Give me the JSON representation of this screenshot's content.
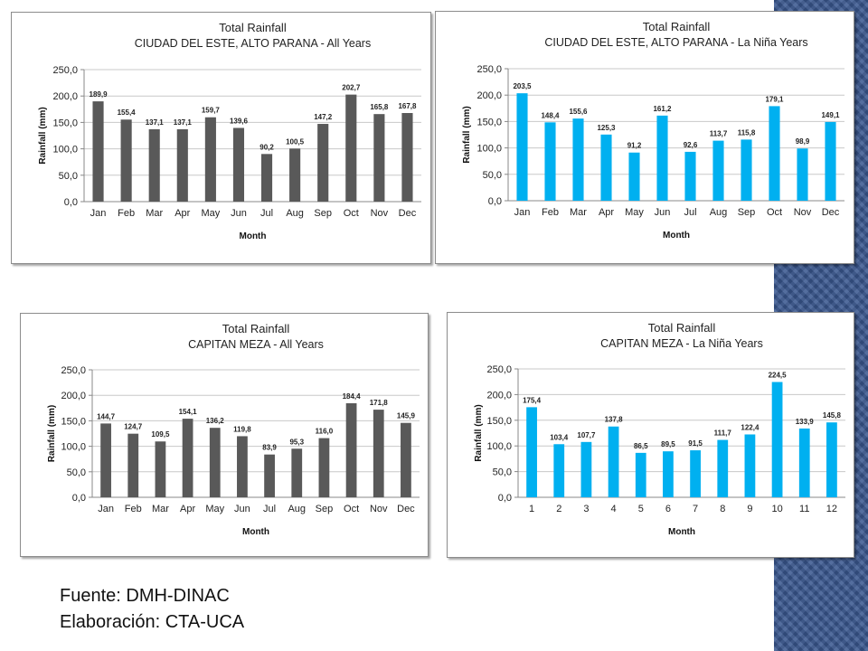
{
  "footer": {
    "source": "Fuente: DMH-DINAC",
    "elaboration": "Elaboración: CTA-UCA"
  },
  "colors": {
    "gray_bar": "#595959",
    "blue_bar": "#00b0f0",
    "side_decoration": "#3a5890"
  },
  "chart_data": [
    {
      "type": "bar",
      "title": "Total Rainfall",
      "subtitle": "CIUDAD DEL ESTE, ALTO PARANA - All Years",
      "xlabel": "Month",
      "ylabel": "Rainfall (mm)",
      "ylim": [
        0,
        250
      ],
      "yticks": [
        "0,0",
        "50,0",
        "100,0",
        "150,0",
        "200,0",
        "250,0"
      ],
      "grid": true,
      "categories": [
        "Jan",
        "Feb",
        "Mar",
        "Apr",
        "May",
        "Jun",
        "Jul",
        "Aug",
        "Sep",
        "Oct",
        "Nov",
        "Dec"
      ],
      "values": [
        189.9,
        155.4,
        137.1,
        137.1,
        159.7,
        139.6,
        90.2,
        100.5,
        147.2,
        202.7,
        165.8,
        167.8
      ],
      "data_labels": [
        "189,9",
        "155,4",
        "137,1",
        "137,1",
        "159,7",
        "139,6",
        "90,2",
        "100,5",
        "147,2",
        "202,7",
        "165,8",
        "167,8"
      ],
      "color": "#595959"
    },
    {
      "type": "bar",
      "title": "Total Rainfall",
      "subtitle": "CIUDAD DEL ESTE, ALTO PARANA - La Niña Years",
      "xlabel": "Month",
      "ylabel": "Rainfall (mm)",
      "ylim": [
        0,
        250
      ],
      "yticks": [
        "0,0",
        "50,0",
        "100,0",
        "150,0",
        "200,0",
        "250,0"
      ],
      "grid": true,
      "categories": [
        "Jan",
        "Feb",
        "Mar",
        "Apr",
        "May",
        "Jun",
        "Jul",
        "Aug",
        "Sep",
        "Oct",
        "Nov",
        "Dec"
      ],
      "values": [
        203.5,
        148.4,
        155.6,
        125.3,
        91.2,
        161.2,
        92.6,
        113.7,
        115.8,
        179.1,
        98.9,
        149.1
      ],
      "data_labels": [
        "203,5",
        "148,4",
        "155,6",
        "125,3",
        "91,2",
        "161,2",
        "92,6",
        "113,7",
        "115,8",
        "179,1",
        "98,9",
        "149,1"
      ],
      "color": "#00b0f0"
    },
    {
      "type": "bar",
      "title": "Total Rainfall",
      "subtitle": "CAPITAN MEZA - All Years",
      "xlabel": "Month",
      "ylabel": "Rainfall (mm)",
      "ylim": [
        0,
        250
      ],
      "yticks": [
        "0,0",
        "50,0",
        "100,0",
        "150,0",
        "200,0",
        "250,0"
      ],
      "grid": true,
      "categories": [
        "Jan",
        "Feb",
        "Mar",
        "Apr",
        "May",
        "Jun",
        "Jul",
        "Aug",
        "Sep",
        "Oct",
        "Nov",
        "Dec"
      ],
      "values": [
        144.7,
        124.7,
        109.5,
        154.1,
        136.2,
        119.8,
        83.9,
        95.3,
        116.0,
        184.4,
        171.8,
        145.9
      ],
      "data_labels": [
        "144,7",
        "124,7",
        "109,5",
        "154,1",
        "136,2",
        "119,8",
        "83,9",
        "95,3",
        "116,0",
        "184,4",
        "171,8",
        "145,9"
      ],
      "color": "#595959"
    },
    {
      "type": "bar",
      "title": "Total Rainfall",
      "subtitle": "CAPITAN MEZA - La Niña Years",
      "xlabel": "Month",
      "ylabel": "Rainfall (mm)",
      "ylim": [
        0,
        250
      ],
      "yticks": [
        "0,0",
        "50,0",
        "100,0",
        "150,0",
        "200,0",
        "250,0"
      ],
      "grid": true,
      "categories": [
        "1",
        "2",
        "3",
        "4",
        "5",
        "6",
        "7",
        "8",
        "9",
        "10",
        "11",
        "12"
      ],
      "values": [
        175.4,
        103.4,
        107.7,
        137.8,
        86.5,
        89.5,
        91.5,
        111.7,
        122.4,
        224.5,
        133.9,
        145.8
      ],
      "data_labels": [
        "175,4",
        "103,4",
        "107,7",
        "137,8",
        "86,5",
        "89,5",
        "91,5",
        "111,7",
        "122,4",
        "224,5",
        "133,9",
        "145,8"
      ],
      "color": "#00b0f0"
    }
  ]
}
